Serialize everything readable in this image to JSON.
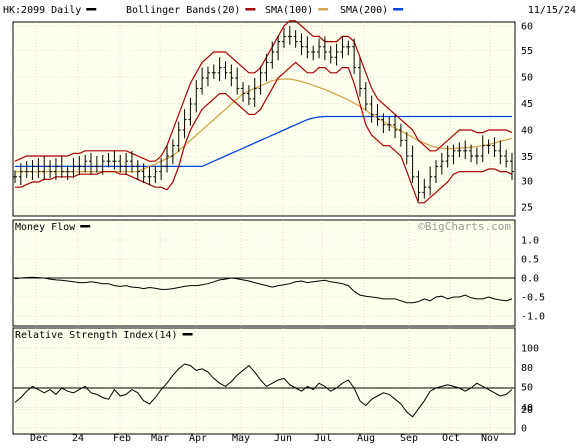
{
  "chart_data": {
    "type": "line",
    "symbol": "HK:2099",
    "period": "Daily",
    "date": "11/15/24",
    "watermark": "©BigCharts.com",
    "legend": [
      {
        "label": "HK:2099 Daily",
        "color": "#000000"
      },
      {
        "label": "Bollinger Bands(20)",
        "color": "#aa0000"
      },
      {
        "label": "SMA(100)",
        "color": "#d4a54a"
      },
      {
        "label": "SMA(200)",
        "color": "#0044dd"
      }
    ],
    "x_ticks": [
      "Dec",
      "24",
      "Feb",
      "Mar",
      "Apr",
      "May",
      "Jun",
      "Jul",
      "Aug",
      "Sep",
      "Oct",
      "Nov"
    ],
    "panels": [
      {
        "id": "price",
        "type": "ohlc",
        "yticks": [
          "60",
          "55",
          "50",
          "45",
          "40",
          "35",
          "30",
          "25"
        ],
        "ylim": [
          25,
          60
        ],
        "series": {
          "close": [
            31,
            32,
            32,
            33,
            32,
            33,
            32,
            33,
            32,
            32,
            33,
            33,
            34,
            33,
            33,
            34,
            34,
            34,
            33,
            34,
            33,
            32,
            31,
            31,
            32,
            33,
            35,
            37,
            40,
            42,
            45,
            48,
            50,
            51,
            51,
            52,
            51,
            50,
            48,
            47,
            46,
            48,
            51,
            53,
            55,
            57,
            58,
            58,
            57,
            56,
            55,
            55,
            56,
            55,
            54,
            55,
            56,
            56,
            52,
            48,
            45,
            43,
            42,
            41,
            41,
            40,
            38,
            35,
            31,
            28,
            29,
            31,
            33,
            34,
            35,
            36,
            36,
            36,
            35,
            35,
            37,
            37,
            36,
            35,
            34,
            32
          ],
          "bollinger_upper": [
            34,
            34.5,
            35,
            35,
            35,
            35,
            35,
            35,
            35,
            35,
            35.5,
            35.5,
            36,
            36,
            36,
            36,
            36,
            36,
            36,
            36,
            35.5,
            35,
            34.5,
            34,
            34,
            35,
            37,
            40,
            43,
            46,
            49,
            51,
            53,
            54,
            55,
            55,
            55,
            54,
            53,
            52,
            51,
            51,
            52,
            54,
            56,
            58,
            60,
            61,
            61,
            60,
            59,
            58,
            58,
            57,
            57,
            57,
            58,
            58,
            57,
            54,
            51,
            48,
            46,
            45,
            44,
            43,
            42,
            41,
            40,
            38,
            37,
            36,
            36,
            37,
            38,
            39,
            40,
            40,
            40,
            39.5,
            39.5,
            40,
            40,
            40,
            40,
            39.5
          ],
          "bollinger_lower": [
            29,
            29,
            29.5,
            30,
            30,
            30.5,
            30.5,
            31,
            31,
            31,
            31,
            31.5,
            31.5,
            31.5,
            31.5,
            32,
            32,
            32,
            31.5,
            31.5,
            31,
            30.5,
            30,
            29.5,
            29,
            29,
            28.5,
            30,
            33,
            37,
            40,
            42,
            44,
            45,
            46,
            47,
            47,
            46,
            45,
            44,
            43,
            43,
            44,
            46,
            48,
            50,
            51,
            52,
            53,
            52,
            51,
            51,
            52,
            52,
            51,
            51,
            52,
            52,
            49,
            45,
            41,
            39,
            38,
            37,
            37,
            36,
            35,
            32,
            29,
            26,
            26,
            27,
            28,
            29,
            30,
            31.5,
            32,
            32,
            32,
            32,
            32,
            32.5,
            32.5,
            32,
            32,
            31.5
          ],
          "sma100": [
            32,
            32,
            32,
            32,
            32,
            32,
            32,
            32,
            32,
            32,
            32,
            32,
            32,
            32,
            32,
            32,
            32,
            32,
            32,
            32,
            32,
            32,
            32.5,
            33,
            33.5,
            34,
            34.5,
            35,
            36,
            37,
            38,
            39,
            40,
            41,
            42,
            43,
            44,
            45,
            46,
            47,
            47.5,
            48,
            48.5,
            49,
            49.5,
            49.7,
            49.8,
            49.8,
            49.6,
            49.3,
            49,
            48.6,
            48.2,
            47.8,
            47.3,
            46.8,
            46.3,
            45.8,
            45.2,
            44.5,
            43.8,
            43,
            42.3,
            41.6,
            41,
            40.4,
            39.8,
            39.2,
            38.6,
            38,
            37.5,
            37,
            36.7,
            36.5,
            36.4,
            36.4,
            36.5,
            36.6,
            36.7,
            36.8,
            37,
            37.2,
            37.5,
            37.8,
            38.1,
            38.4
          ],
          "sma200": [
            33,
            33,
            33,
            33,
            33,
            33,
            33,
            33,
            33,
            33,
            33,
            33,
            33,
            33,
            33,
            33,
            33,
            33,
            33,
            33,
            33,
            33,
            33,
            33,
            33,
            33,
            33,
            33,
            33,
            33,
            33,
            33,
            33,
            33.5,
            34,
            34.5,
            35,
            35.5,
            36,
            36.5,
            37,
            37.5,
            38,
            38.5,
            39,
            39.5,
            40,
            40.5,
            41,
            41.5,
            42,
            42.3,
            42.5,
            42.6,
            42.6,
            42.6,
            42.6,
            42.6,
            42.6,
            42.6,
            42.6,
            42.6,
            42.6,
            42.6,
            42.6,
            42.6,
            42.6,
            42.6,
            42.6,
            42.6,
            42.6,
            42.6,
            42.6,
            42.6,
            42.6,
            42.6,
            42.6,
            42.6,
            42.6,
            42.6,
            42.6,
            42.6,
            42.6,
            42.6,
            42.6,
            42.6
          ]
        }
      },
      {
        "id": "money-flow",
        "type": "line",
        "title": "Money Flow",
        "title_color": "#000000",
        "yticks": [
          "1.0",
          "0.5",
          "0.0",
          "-0.5",
          "-1.0"
        ],
        "ylim": [
          -1.0,
          1.0
        ],
        "reference": 0.0,
        "values": [
          -0.02,
          0.0,
          0.01,
          0.02,
          0.01,
          0.0,
          -0.03,
          -0.05,
          -0.06,
          -0.08,
          -0.1,
          -0.12,
          -0.12,
          -0.1,
          -0.12,
          -0.15,
          -0.15,
          -0.2,
          -0.22,
          -0.2,
          -0.24,
          -0.25,
          -0.28,
          -0.25,
          -0.27,
          -0.3,
          -0.3,
          -0.28,
          -0.25,
          -0.22,
          -0.2,
          -0.2,
          -0.18,
          -0.15,
          -0.1,
          -0.05,
          -0.03,
          0.0,
          -0.02,
          -0.05,
          -0.08,
          -0.12,
          -0.16,
          -0.2,
          -0.24,
          -0.2,
          -0.18,
          -0.15,
          -0.1,
          -0.08,
          -0.12,
          -0.1,
          -0.08,
          -0.06,
          -0.1,
          -0.12,
          -0.15,
          -0.2,
          -0.35,
          -0.45,
          -0.48,
          -0.5,
          -0.52,
          -0.55,
          -0.55,
          -0.55,
          -0.6,
          -0.65,
          -0.65,
          -0.62,
          -0.55,
          -0.6,
          -0.5,
          -0.48,
          -0.55,
          -0.5,
          -0.5,
          -0.45,
          -0.52,
          -0.55,
          -0.55,
          -0.5,
          -0.55,
          -0.58,
          -0.6,
          -0.55
        ]
      },
      {
        "id": "rsi",
        "type": "line",
        "title": "Relative Strength Index(14)",
        "title_color": "#000000",
        "yticks": [
          "100",
          "80",
          "50",
          "40",
          "20",
          "0"
        ],
        "ylim": [
          0,
          100
        ],
        "reference": 50,
        "values": [
          32,
          38,
          46,
          52,
          48,
          44,
          48,
          42,
          50,
          46,
          44,
          48,
          52,
          44,
          42,
          38,
          36,
          48,
          40,
          42,
          48,
          44,
          34,
          30,
          38,
          48,
          56,
          66,
          74,
          80,
          78,
          72,
          74,
          70,
          62,
          56,
          52,
          58,
          66,
          72,
          78,
          70,
          60,
          52,
          56,
          60,
          62,
          54,
          50,
          46,
          52,
          48,
          56,
          52,
          46,
          50,
          56,
          60,
          50,
          34,
          28,
          36,
          40,
          44,
          42,
          36,
          30,
          20,
          14,
          24,
          34,
          46,
          50,
          52,
          54,
          52,
          50,
          46,
          50,
          56,
          52,
          48,
          44,
          40,
          42,
          48
        ]
      }
    ]
  }
}
